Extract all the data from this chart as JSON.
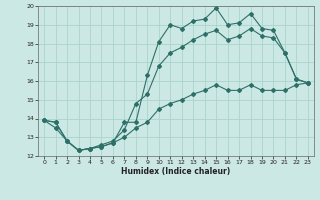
{
  "title": "",
  "xlabel": "Humidex (Indice chaleur)",
  "ylabel": "",
  "bg_color": "#cce8e4",
  "grid_color": "#aad4cc",
  "line_color": "#2d7068",
  "xlim": [
    -0.5,
    23.5
  ],
  "ylim": [
    12,
    20
  ],
  "xticks": [
    0,
    1,
    2,
    3,
    4,
    5,
    6,
    7,
    8,
    9,
    10,
    11,
    12,
    13,
    14,
    15,
    16,
    17,
    18,
    19,
    20,
    21,
    22,
    23
  ],
  "yticks": [
    12,
    13,
    14,
    15,
    16,
    17,
    18,
    19,
    20
  ],
  "line1_x": [
    0,
    1,
    2,
    3,
    4,
    5,
    6,
    7,
    8,
    9,
    10,
    11,
    12,
    13,
    14,
    15,
    16,
    17,
    18,
    19,
    20,
    21,
    22,
    23
  ],
  "line1_y": [
    13.9,
    13.8,
    12.8,
    12.3,
    12.4,
    12.5,
    12.7,
    13.8,
    13.8,
    16.3,
    18.1,
    19.0,
    18.8,
    19.2,
    19.3,
    19.9,
    19.0,
    19.1,
    19.6,
    18.8,
    18.7,
    17.5,
    16.1,
    15.9
  ],
  "line2_x": [
    0,
    1,
    2,
    3,
    4,
    5,
    6,
    7,
    8,
    9,
    10,
    11,
    12,
    13,
    14,
    15,
    16,
    17,
    18,
    19,
    20,
    21,
    22,
    23
  ],
  "line2_y": [
    13.9,
    13.8,
    12.8,
    12.3,
    12.4,
    12.6,
    12.8,
    13.4,
    14.8,
    15.3,
    16.8,
    17.5,
    17.8,
    18.2,
    18.5,
    18.7,
    18.2,
    18.4,
    18.8,
    18.4,
    18.3,
    17.5,
    16.1,
    15.9
  ],
  "line3_x": [
    0,
    1,
    2,
    3,
    4,
    5,
    6,
    7,
    8,
    9,
    10,
    11,
    12,
    13,
    14,
    15,
    16,
    17,
    18,
    19,
    20,
    21,
    22,
    23
  ],
  "line3_y": [
    13.9,
    13.5,
    12.8,
    12.3,
    12.4,
    12.5,
    12.7,
    13.0,
    13.5,
    13.8,
    14.5,
    14.8,
    15.0,
    15.3,
    15.5,
    15.8,
    15.5,
    15.5,
    15.8,
    15.5,
    15.5,
    15.5,
    15.8,
    15.9
  ]
}
